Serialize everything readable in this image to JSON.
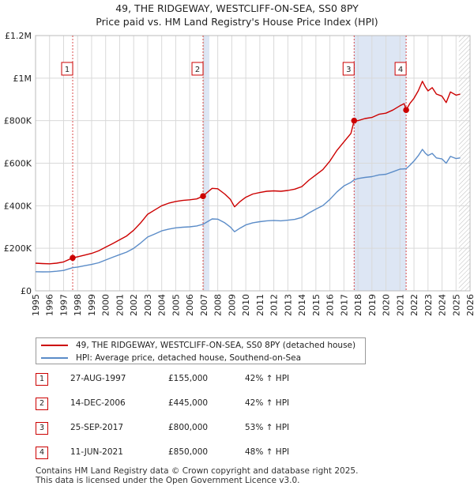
{
  "title_line1": "49, THE RIDGEWAY, WESTCLIFF-ON-SEA, SS0 8PY",
  "title_line2": "Price paid vs. HM Land Registry's House Price Index (HPI)",
  "colors": {
    "property": "#cc0000",
    "hpi": "#5b8cc8",
    "shade": "#dde6f4",
    "grid": "#d9d9d9",
    "marker": "#cc0000"
  },
  "chart_data": {
    "type": "line",
    "title": "Price paid vs. HM Land Registry's House Price Index (HPI)",
    "xlabel": "",
    "ylabel": "",
    "xlim": [
      1995,
      2026
    ],
    "ylim": [
      0,
      1200000
    ],
    "x_ticks": [
      "1995",
      "1996",
      "1997",
      "1998",
      "1999",
      "2000",
      "2001",
      "2002",
      "2003",
      "2004",
      "2005",
      "2006",
      "2007",
      "2008",
      "2009",
      "2010",
      "2011",
      "2012",
      "2013",
      "2014",
      "2015",
      "2016",
      "2017",
      "2018",
      "2019",
      "2020",
      "2021",
      "2022",
      "2023",
      "2024",
      "2025",
      "2026"
    ],
    "y_ticks": [
      {
        "value": 0,
        "label": "£0"
      },
      {
        "value": 200000,
        "label": "£200K"
      },
      {
        "value": 400000,
        "label": "£400K"
      },
      {
        "value": 600000,
        "label": "£600K"
      },
      {
        "value": 800000,
        "label": "£800K"
      },
      {
        "value": 1000000,
        "label": "£1M"
      },
      {
        "value": 1200000,
        "label": "£1.2M"
      }
    ],
    "shaded_periods": [
      [
        2006.95,
        2007.4
      ],
      [
        2017.73,
        2021.44
      ]
    ],
    "forecast_hatch_from": 2025.2,
    "series": [
      {
        "name": "49, THE RIDGEWAY, WESTCLIFF-ON-SEA, SS0 8PY (detached house)",
        "color": "#cc0000",
        "points": [
          [
            1995.0,
            130000
          ],
          [
            1995.5,
            128000
          ],
          [
            1996.0,
            127000
          ],
          [
            1996.5,
            130000
          ],
          [
            1997.0,
            136000
          ],
          [
            1997.65,
            155000
          ],
          [
            1998.0,
            160000
          ],
          [
            1998.5,
            168000
          ],
          [
            1999.0,
            176000
          ],
          [
            1999.5,
            188000
          ],
          [
            2000.0,
            205000
          ],
          [
            2000.5,
            222000
          ],
          [
            2001.0,
            240000
          ],
          [
            2001.5,
            258000
          ],
          [
            2002.0,
            285000
          ],
          [
            2002.5,
            320000
          ],
          [
            2003.0,
            360000
          ],
          [
            2003.5,
            380000
          ],
          [
            2004.0,
            400000
          ],
          [
            2004.5,
            412000
          ],
          [
            2005.0,
            420000
          ],
          [
            2005.5,
            425000
          ],
          [
            2006.0,
            428000
          ],
          [
            2006.5,
            432000
          ],
          [
            2006.95,
            445000
          ],
          [
            2007.2,
            460000
          ],
          [
            2007.6,
            482000
          ],
          [
            2008.0,
            480000
          ],
          [
            2008.5,
            455000
          ],
          [
            2008.9,
            430000
          ],
          [
            2009.2,
            395000
          ],
          [
            2009.6,
            420000
          ],
          [
            2010.0,
            440000
          ],
          [
            2010.5,
            455000
          ],
          [
            2011.0,
            462000
          ],
          [
            2011.5,
            468000
          ],
          [
            2012.0,
            470000
          ],
          [
            2012.5,
            468000
          ],
          [
            2013.0,
            472000
          ],
          [
            2013.5,
            478000
          ],
          [
            2014.0,
            490000
          ],
          [
            2014.5,
            520000
          ],
          [
            2015.0,
            545000
          ],
          [
            2015.5,
            570000
          ],
          [
            2016.0,
            610000
          ],
          [
            2016.5,
            660000
          ],
          [
            2017.0,
            700000
          ],
          [
            2017.5,
            740000
          ],
          [
            2017.73,
            800000
          ],
          [
            2018.0,
            800000
          ],
          [
            2018.5,
            810000
          ],
          [
            2019.0,
            815000
          ],
          [
            2019.5,
            830000
          ],
          [
            2020.0,
            835000
          ],
          [
            2020.5,
            850000
          ],
          [
            2021.0,
            870000
          ],
          [
            2021.3,
            880000
          ],
          [
            2021.44,
            850000
          ],
          [
            2021.7,
            880000
          ],
          [
            2022.0,
            905000
          ],
          [
            2022.3,
            940000
          ],
          [
            2022.6,
            985000
          ],
          [
            2022.8,
            960000
          ],
          [
            2023.0,
            940000
          ],
          [
            2023.3,
            955000
          ],
          [
            2023.6,
            925000
          ],
          [
            2024.0,
            915000
          ],
          [
            2024.3,
            885000
          ],
          [
            2024.6,
            935000
          ],
          [
            2025.0,
            920000
          ],
          [
            2025.3,
            925000
          ]
        ]
      },
      {
        "name": "HPI: Average price, detached house, Southend-on-Sea",
        "color": "#5b8cc8",
        "points": [
          [
            1995.0,
            90000
          ],
          [
            1995.5,
            89000
          ],
          [
            1996.0,
            89500
          ],
          [
            1996.5,
            92000
          ],
          [
            1997.0,
            96000
          ],
          [
            1997.65,
            109000
          ],
          [
            1998.0,
            112000
          ],
          [
            1998.5,
            118000
          ],
          [
            1999.0,
            124000
          ],
          [
            1999.5,
            132000
          ],
          [
            2000.0,
            145000
          ],
          [
            2000.5,
            158000
          ],
          [
            2001.0,
            170000
          ],
          [
            2001.5,
            182000
          ],
          [
            2002.0,
            200000
          ],
          [
            2002.5,
            225000
          ],
          [
            2003.0,
            253000
          ],
          [
            2003.5,
            267000
          ],
          [
            2004.0,
            282000
          ],
          [
            2004.5,
            290000
          ],
          [
            2005.0,
            296000
          ],
          [
            2005.5,
            299000
          ],
          [
            2006.0,
            301000
          ],
          [
            2006.5,
            305000
          ],
          [
            2006.95,
            313000
          ],
          [
            2007.2,
            323000
          ],
          [
            2007.6,
            338000
          ],
          [
            2008.0,
            337000
          ],
          [
            2008.5,
            320000
          ],
          [
            2008.9,
            300000
          ],
          [
            2009.2,
            278000
          ],
          [
            2009.6,
            295000
          ],
          [
            2010.0,
            310000
          ],
          [
            2010.5,
            320000
          ],
          [
            2011.0,
            325000
          ],
          [
            2011.5,
            329000
          ],
          [
            2012.0,
            331000
          ],
          [
            2012.5,
            329000
          ],
          [
            2013.0,
            332000
          ],
          [
            2013.5,
            336000
          ],
          [
            2014.0,
            345000
          ],
          [
            2014.5,
            366000
          ],
          [
            2015.0,
            384000
          ],
          [
            2015.5,
            401000
          ],
          [
            2016.0,
            430000
          ],
          [
            2016.5,
            465000
          ],
          [
            2017.0,
            493000
          ],
          [
            2017.5,
            510000
          ],
          [
            2017.73,
            522000
          ],
          [
            2018.0,
            528000
          ],
          [
            2018.5,
            533000
          ],
          [
            2019.0,
            537000
          ],
          [
            2019.5,
            545000
          ],
          [
            2020.0,
            548000
          ],
          [
            2020.5,
            560000
          ],
          [
            2021.0,
            572000
          ],
          [
            2021.44,
            574000
          ],
          [
            2021.7,
            590000
          ],
          [
            2022.0,
            610000
          ],
          [
            2022.3,
            635000
          ],
          [
            2022.6,
            665000
          ],
          [
            2022.8,
            648000
          ],
          [
            2023.0,
            636000
          ],
          [
            2023.3,
            646000
          ],
          [
            2023.6,
            625000
          ],
          [
            2024.0,
            620000
          ],
          [
            2024.3,
            600000
          ],
          [
            2024.6,
            632000
          ],
          [
            2025.0,
            622000
          ],
          [
            2025.3,
            625000
          ]
        ]
      }
    ],
    "sales": [
      {
        "num": "1",
        "x": 1997.65,
        "value": 155000
      },
      {
        "num": "2",
        "x": 2006.95,
        "value": 445000
      },
      {
        "num": "3",
        "x": 2017.73,
        "value": 800000
      },
      {
        "num": "4",
        "x": 2021.44,
        "value": 850000
      }
    ]
  },
  "legend": {
    "property_label": "49, THE RIDGEWAY, WESTCLIFF-ON-SEA, SS0 8PY (detached house)",
    "hpi_label": "HPI: Average price, detached house, Southend-on-Sea"
  },
  "sales_table": [
    {
      "num": "1",
      "date": "27-AUG-1997",
      "price": "£155,000",
      "hpi": "42% ↑ HPI"
    },
    {
      "num": "2",
      "date": "14-DEC-2006",
      "price": "£445,000",
      "hpi": "42% ↑ HPI"
    },
    {
      "num": "3",
      "date": "25-SEP-2017",
      "price": "£800,000",
      "hpi": "53% ↑ HPI"
    },
    {
      "num": "4",
      "date": "11-JUN-2021",
      "price": "£850,000",
      "hpi": "48% ↑ HPI"
    }
  ],
  "footer_line1": "Contains HM Land Registry data © Crown copyright and database right 2025.",
  "footer_line2": "This data is licensed under the Open Government Licence v3.0."
}
